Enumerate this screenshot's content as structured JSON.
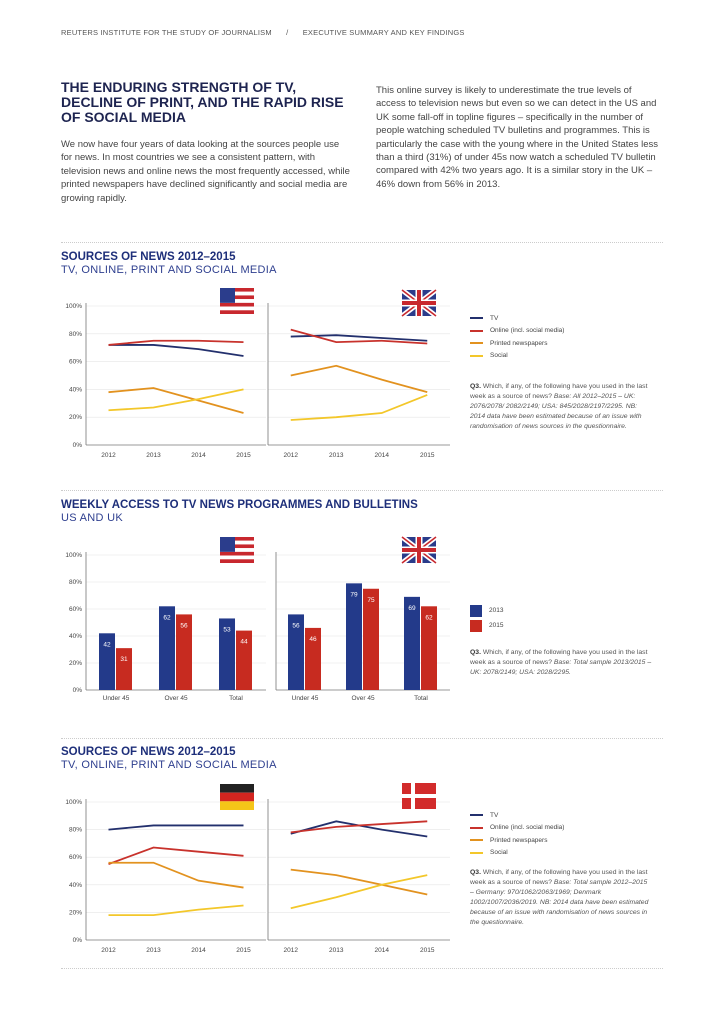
{
  "header": {
    "left": "REUTERS INSTITUTE FOR THE STUDY OF JOURNALISM",
    "sep": "/",
    "right": "EXECUTIVE SUMMARY AND KEY FINDINGS"
  },
  "title": "THE ENDURING STRENGTH OF TV, DECLINE OF PRINT, AND THE RAPID RISE OF SOCIAL MEDIA",
  "intro": "We now have four years of data looking at the sources people use for news. In most countries we see a consistent pattern, with television news and online news the most frequently accessed, while printed newspapers have declined significantly and social media are growing rapidly.",
  "right_para": "This online survey is likely to underestimate the true levels of access to television news but even so we can detect in the US and UK some fall-off in topline figures – specifically in the number of people watching scheduled TV bulletins and programmes. This is particularly the case with the young where in the United States less than a third (31%) of under 45s now watch a scheduled TV bulletin compared with 42% two years ago. It is a similar story in the UK – 46% down from 56% in 2013.",
  "legend_lines": [
    "TV",
    "Online (incl. social media)",
    "Printed newspapers",
    "Social"
  ],
  "colors": {
    "TV": "#23306d",
    "Online": "#c8322c",
    "Print": "#e2921f",
    "Social": "#f3c72a",
    "bar2013": "#233a8a",
    "bar2015": "#c72b20"
  },
  "sections": [
    {
      "title": "SOURCES OF NEWS 2012–2015",
      "subtitle": "TV, ONLINE, PRINT AND SOCIAL MEDIA",
      "note_q": "Q3.",
      "note_text": " Which, if any, of the following have you used in the last week as a source of news? ",
      "note_em": "Base: All 2012–2015 – UK: 2076/2078/ 2082/2149; USA: 845/2028/2197/2295. NB: 2014 data have been estimated because of an issue with randomisation of news sources in the questionnaire."
    },
    {
      "title": "WEEKLY ACCESS TO TV NEWS PROGRAMMES AND BULLETINS",
      "subtitle": "US AND UK",
      "legend": [
        "2013",
        "2015"
      ],
      "note_q": "Q3.",
      "note_text": " Which, if any, of the following have you used in the last week as a source of news? ",
      "note_em": "Base: Total sample 2013/2015 – UK: 2078/2149; USA: 2028/2295."
    },
    {
      "title": "SOURCES OF NEWS 2012–2015",
      "subtitle": "TV, ONLINE, PRINT AND SOCIAL MEDIA",
      "note_q": "Q3.",
      "note_text": " Which, if any, of the following have you used in the last week as a source of news? ",
      "note_em": "Base: Total sample 2012–2015 – Germany: 970/1062/2063/1969; Denmark 1002/1007/2036/2019. NB: 2014 data have been estimated because of an issue with randomisation of news sources in the questionnaire."
    }
  ],
  "chart_data": [
    {
      "type": "line",
      "panel": "United States",
      "flag": "us-flag",
      "x": [
        "2012",
        "2013",
        "2014",
        "2015"
      ],
      "yticks": [
        "0%",
        "20%",
        "40%",
        "60%",
        "80%",
        "100%"
      ],
      "ylim": [
        0,
        100
      ],
      "series": [
        {
          "name": "TV",
          "values": [
            72,
            72,
            69,
            64
          ]
        },
        {
          "name": "Online (incl. social media)",
          "values": [
            72,
            75,
            75,
            74
          ]
        },
        {
          "name": "Printed newspapers",
          "values": [
            38,
            41,
            32,
            23
          ]
        },
        {
          "name": "Social",
          "values": [
            25,
            27,
            33,
            40
          ]
        }
      ]
    },
    {
      "type": "line",
      "panel": "United Kingdom",
      "flag": "uk-flag",
      "x": [
        "2012",
        "2013",
        "2014",
        "2015"
      ],
      "ylim": [
        0,
        100
      ],
      "series": [
        {
          "name": "TV",
          "values": [
            78,
            79,
            77,
            75
          ]
        },
        {
          "name": "Online (incl. social media)",
          "values": [
            83,
            74,
            75,
            73
          ]
        },
        {
          "name": "Printed newspapers",
          "values": [
            50,
            57,
            47,
            38
          ]
        },
        {
          "name": "Social",
          "values": [
            18,
            20,
            23,
            36
          ]
        }
      ]
    },
    {
      "type": "bar",
      "panel": "United States",
      "flag": "us-flag",
      "categories": [
        "Under 45",
        "Over 45",
        "Total"
      ],
      "yticks": [
        "0%",
        "20%",
        "40%",
        "60%",
        "80%",
        "100%"
      ],
      "ylim": [
        0,
        100
      ],
      "series": [
        {
          "name": "2013",
          "values": [
            42,
            62,
            53
          ]
        },
        {
          "name": "2015",
          "values": [
            31,
            56,
            44
          ]
        }
      ]
    },
    {
      "type": "bar",
      "panel": "United Kingdom",
      "flag": "uk-flag",
      "categories": [
        "Under 45",
        "Over 45",
        "Total"
      ],
      "ylim": [
        0,
        100
      ],
      "series": [
        {
          "name": "2013",
          "values": [
            56,
            79,
            69
          ]
        },
        {
          "name": "2015",
          "values": [
            46,
            75,
            62
          ]
        }
      ]
    },
    {
      "type": "line",
      "panel": "Germany",
      "flag": "de-flag",
      "x": [
        "2012",
        "2013",
        "2014",
        "2015"
      ],
      "yticks": [
        "0%",
        "20%",
        "40%",
        "60%",
        "80%",
        "100%"
      ],
      "ylim": [
        0,
        100
      ],
      "series": [
        {
          "name": "TV",
          "values": [
            80,
            83,
            83,
            83
          ]
        },
        {
          "name": "Online (incl. social media)",
          "values": [
            55,
            67,
            64,
            61
          ]
        },
        {
          "name": "Printed newspapers",
          "values": [
            56,
            56,
            43,
            38
          ]
        },
        {
          "name": "Social",
          "values": [
            18,
            18,
            22,
            25
          ]
        }
      ]
    },
    {
      "type": "line",
      "panel": "Denmark",
      "flag": "dk-flag",
      "x": [
        "2012",
        "2013",
        "2014",
        "2015"
      ],
      "ylim": [
        0,
        100
      ],
      "series": [
        {
          "name": "TV",
          "values": [
            77,
            86,
            80,
            75
          ]
        },
        {
          "name": "Online (incl. social media)",
          "values": [
            78,
            82,
            84,
            86
          ]
        },
        {
          "name": "Printed newspapers",
          "values": [
            51,
            47,
            40,
            33
          ]
        },
        {
          "name": "Social",
          "values": [
            23,
            31,
            40,
            47
          ]
        }
      ]
    }
  ]
}
